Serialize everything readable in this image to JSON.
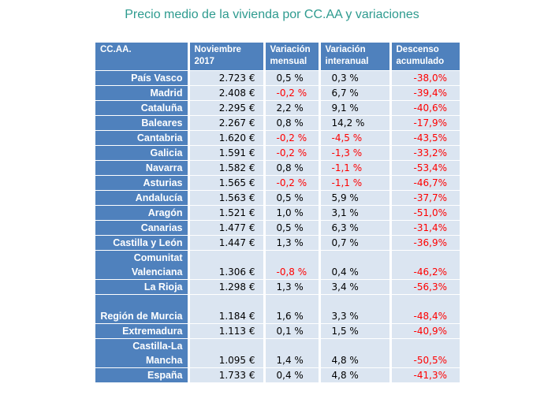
{
  "title": "Precio medio de la vivienda por CC.AA y variaciones",
  "headers": {
    "region": "CC.AA.",
    "price": "Noviembre 2017",
    "monthly": "Variación mensual",
    "yearly": "Variación interanual",
    "accumulated": "Descenso acumulado"
  },
  "colors": {
    "header_bg": "#4f81bd",
    "cell_bg": "#dbe5f1",
    "negative": "#ff0000",
    "title": "#2e9b8f"
  },
  "rows": [
    {
      "region": "País Vasco",
      "price": "2.723 €",
      "monthly": "0,5 %",
      "yearly": "0,3 %",
      "accumulated": "-38,0%"
    },
    {
      "region": "Madrid",
      "price": "2.408 €",
      "monthly": "-0,2 %",
      "yearly": "6,7 %",
      "accumulated": "-39,4%"
    },
    {
      "region": "Cataluña",
      "price": "2.295 €",
      "monthly": "2,2 %",
      "yearly": "9,1 %",
      "accumulated": "-40,6%"
    },
    {
      "region": "Baleares",
      "price": "2.267 €",
      "monthly": "0,8 %",
      "yearly": "14,2 %",
      "accumulated": "-17,9%"
    },
    {
      "region": "Cantabria",
      "price": "1.620 €",
      "monthly": "-0,2 %",
      "yearly": "-4,5 %",
      "accumulated": "-43,5%"
    },
    {
      "region": "Galicia",
      "price": "1.591 €",
      "monthly": "-0,2 %",
      "yearly": "-1,3 %",
      "accumulated": "-33,2%"
    },
    {
      "region": "Navarra",
      "price": "1.582 €",
      "monthly": "0,8 %",
      "yearly": "-1,1 %",
      "accumulated": "-53,4%"
    },
    {
      "region": "Asturias",
      "price": "1.565 €",
      "monthly": "-0,2 %",
      "yearly": "-1,1 %",
      "accumulated": "-46,7%"
    },
    {
      "region": "Andalucía",
      "price": "1.563 €",
      "monthly": "0,5 %",
      "yearly": "5,9 %",
      "accumulated": "-37,7%"
    },
    {
      "region": "Aragón",
      "price": "1.521 €",
      "monthly": "1,0 %",
      "yearly": "3,1 %",
      "accumulated": "-51,0%"
    },
    {
      "region": "Canarias",
      "price": "1.477 €",
      "monthly": "0,5 %",
      "yearly": "6,3 %",
      "accumulated": "-31,4%"
    },
    {
      "region": "Castilla y León",
      "price": "1.447 €",
      "monthly": "1,3 %",
      "yearly": "0,7 %",
      "accumulated": "-36,9%"
    },
    {
      "region": "Comunitat Valenciana",
      "price": "1.306 €",
      "monthly": "-0,8 %",
      "yearly": "0,4 %",
      "accumulated": "-46,2%"
    },
    {
      "region": "La Rioja",
      "price": "1.298 €",
      "monthly": "1,3 %",
      "yearly": "3,4 %",
      "accumulated": "-56,3%"
    },
    {
      "region": "Región de Murcia",
      "price": "1.184 €",
      "monthly": "1,6 %",
      "yearly": "3,3 %",
      "accumulated": "-48,4%"
    },
    {
      "region": "Extremadura",
      "price": "1.113 €",
      "monthly": "0,1 %",
      "yearly": "1,5 %",
      "accumulated": "-40,9%"
    },
    {
      "region": "Castilla-La Mancha",
      "price": "1.095 €",
      "monthly": "1,4 %",
      "yearly": "4,8 %",
      "accumulated": "-50,5%"
    },
    {
      "region": "España",
      "price": "1.733 €",
      "monthly": "0,4 %",
      "yearly": "4,8 %",
      "accumulated": "-41,3%"
    }
  ]
}
